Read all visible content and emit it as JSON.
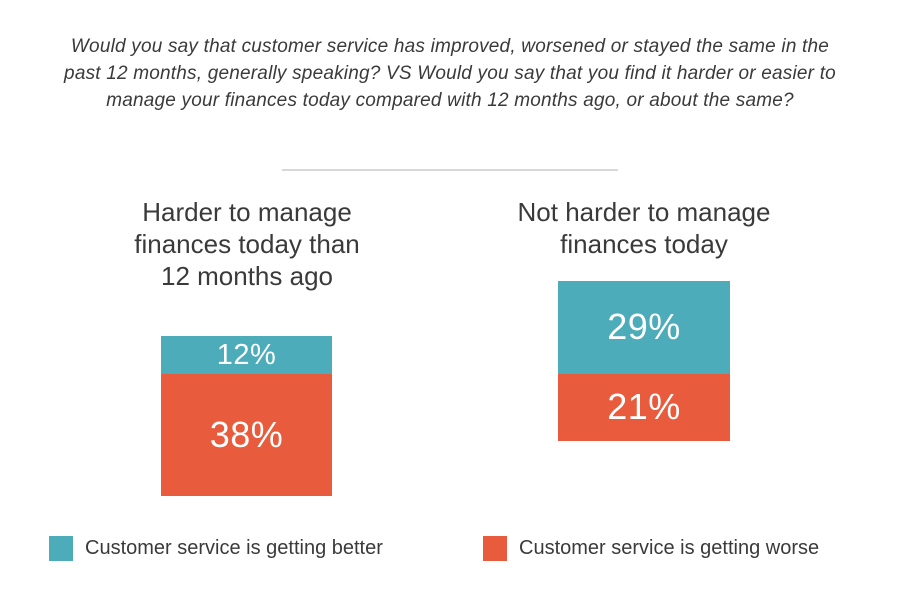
{
  "title": "Would you say that customer service has improved, worsened or stayed the same in the past 12 months, generally speaking? VS Would you say that you find it harder or easier to manage your finances today compared with 12 months ago, or about the same?",
  "chart_data": {
    "type": "bar",
    "subtype": "stacked-column-pair",
    "categories": [
      "Harder to manage finances today than 12 months ago",
      "Not harder to manage finances today"
    ],
    "series": [
      {
        "name": "Customer service is getting better",
        "color": "#4DACBA",
        "values": [
          12,
          29
        ]
      },
      {
        "name": "Customer service is getting worse",
        "color": "#E85C3D",
        "values": [
          38,
          21
        ]
      }
    ],
    "value_labels": [
      [
        "12%",
        "38%"
      ],
      [
        "29%",
        "21%"
      ]
    ],
    "unit": "%",
    "axes": "none",
    "grid": false,
    "legend_position": "bottom"
  },
  "columns": [
    {
      "heading_lines": [
        "Harder to manage",
        "finances today than",
        "12 months ago"
      ],
      "better_label": "12%",
      "worse_label": "38%"
    },
    {
      "heading_lines": [
        "Not harder to manage",
        "finances today"
      ],
      "better_label": "29%",
      "worse_label": "21%"
    }
  ],
  "legend": [
    {
      "label": "Customer service is getting better",
      "color": "#4DACBA"
    },
    {
      "label": "Customer service is getting worse",
      "color": "#E85C3D"
    }
  ],
  "colors": {
    "better": "#4DACBA",
    "worse": "#E85C3D",
    "text": "#3A3A3A",
    "divider": "#D8D8D8",
    "background": "#FFFFFF",
    "bar_label_text": "#FFFFFF"
  }
}
